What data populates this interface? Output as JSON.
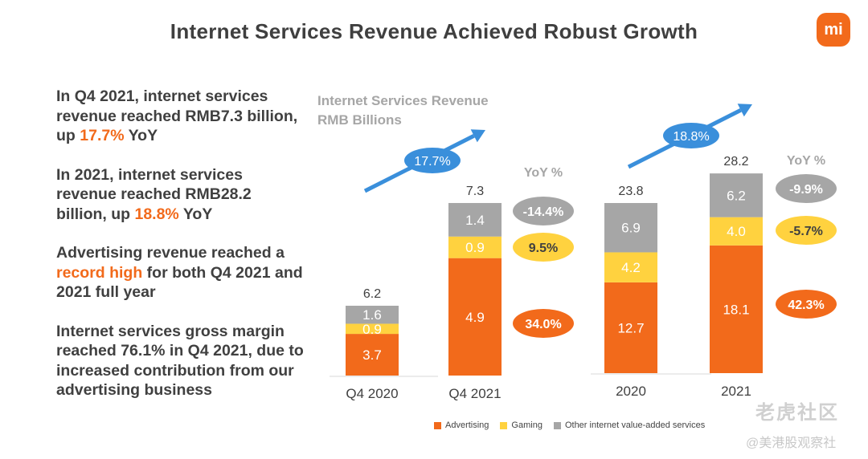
{
  "title": "Internet Services Revenue Achieved Robust Growth",
  "logo": "mi",
  "bullets": [
    {
      "pre": "In Q4 2021, internet services revenue reached RMB7.3 billion, up ",
      "hl": "17.7%",
      "post": " YoY"
    },
    {
      "pre": "In 2021, internet services revenue reached RMB28.2 billion, up ",
      "hl": "18.8%",
      "post": " YoY"
    },
    {
      "pre": "Advertising revenue reached a ",
      "hl": "record high",
      "post": " for both Q4 2021 and 2021 full year"
    },
    {
      "pre": "Internet services gross margin reached 76.1% in Q4 2021, due to increased contribution from our advertising business",
      "hl": "",
      "post": ""
    }
  ],
  "colors": {
    "advertising": "#f26a1b",
    "gaming": "#ffd23f",
    "other": "#a6a6a6",
    "arrow": "#3a8fdb",
    "text": "#404040"
  },
  "chart_data": {
    "type": "bar",
    "stacked": true,
    "title": "Internet Services Revenue",
    "unit_label": "RMB Billions",
    "yoy_header": "YoY %",
    "panels": [
      {
        "categories": [
          "Q4 2020",
          "Q4 2021"
        ],
        "series": [
          {
            "name": "Advertising",
            "values": [
              3.7,
              4.9
            ]
          },
          {
            "name": "Gaming",
            "values": [
              0.9,
              0.9
            ]
          },
          {
            "name": "Other internet value-added services",
            "values": [
              1.6,
              1.4
            ]
          }
        ],
        "totals": [
          "6.2",
          "7.3"
        ],
        "value_labels": [
          [
            "3.7",
            "4.9"
          ],
          [
            "0.9",
            "0.9"
          ],
          [
            "1.6",
            "1.4"
          ]
        ],
        "growth": "17.7%",
        "yoy": [
          "34.0%",
          "9.5%",
          "-14.4%"
        ]
      },
      {
        "categories": [
          "2020",
          "2021"
        ],
        "series": [
          {
            "name": "Advertising",
            "values": [
              12.7,
              18.1
            ]
          },
          {
            "name": "Gaming",
            "values": [
              4.2,
              4.0
            ]
          },
          {
            "name": "Other internet value-added services",
            "values": [
              6.9,
              6.2
            ]
          }
        ],
        "totals": [
          "23.8",
          "28.2"
        ],
        "value_labels": [
          [
            "12.7",
            "18.1"
          ],
          [
            "4.2",
            "4.0"
          ],
          [
            "6.9",
            "6.2"
          ]
        ],
        "growth": "18.8%",
        "yoy": [
          "42.3%",
          "-5.7%",
          "-9.9%"
        ]
      }
    ],
    "legend": [
      "Advertising",
      "Gaming",
      "Other internet value-added services"
    ]
  },
  "watermark": {
    "main": "老虎社区",
    "sub": "@美港股观察社"
  }
}
